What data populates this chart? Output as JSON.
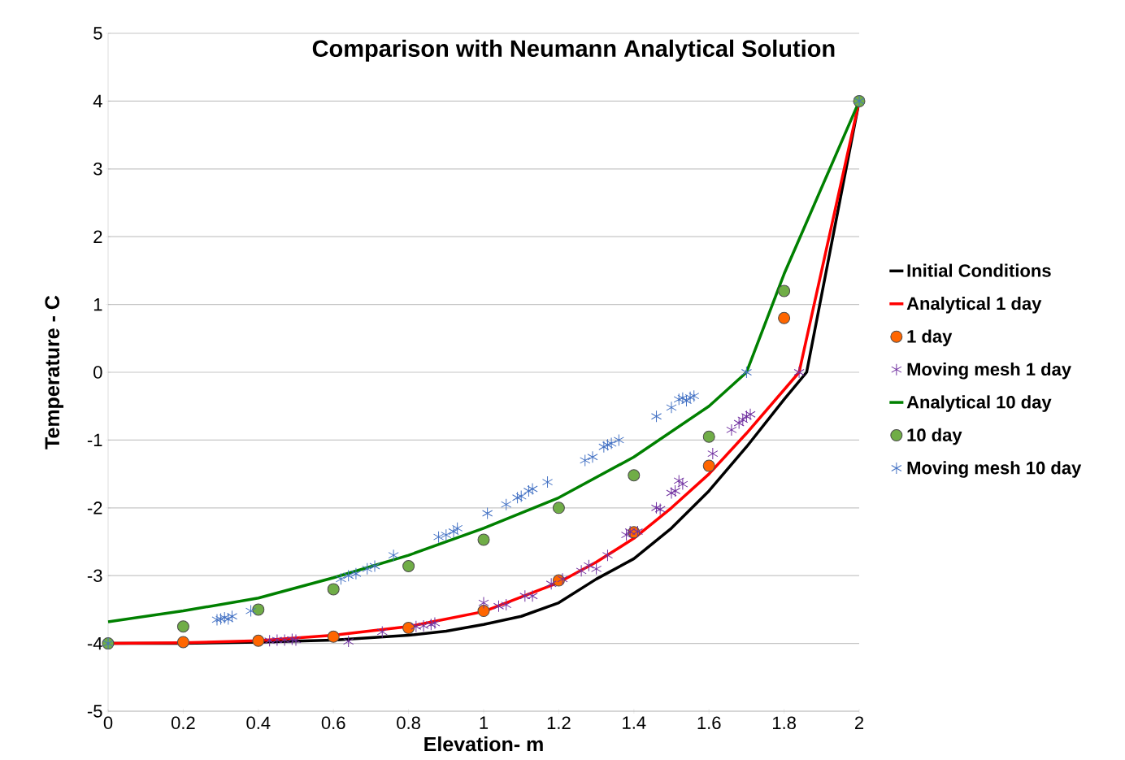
{
  "chart_data": {
    "type": "line",
    "title": "Comparison with Neumann Analytical Solution",
    "xlabel": "Elevation- m",
    "ylabel": "Temperature - C",
    "xlim": [
      0,
      2
    ],
    "xticks": [
      0,
      0.2,
      0.4,
      0.6,
      0.8,
      1,
      1.2,
      1.4,
      1.6,
      1.8,
      2
    ],
    "ylim": [
      -5,
      5
    ],
    "yticks": [
      -5,
      -4,
      -3,
      -2,
      -1,
      0,
      1,
      2,
      3,
      4,
      5
    ],
    "grid": "y",
    "legend": "right",
    "line_style": "solid",
    "series": [
      {
        "name": "Initial Conditions",
        "type": "line",
        "marker": "none",
        "color": "#000000",
        "x": [
          0,
          0.2,
          0.4,
          0.6,
          0.8,
          0.9,
          1.0,
          1.1,
          1.2,
          1.3,
          1.4,
          1.5,
          1.6,
          1.7,
          1.8,
          1.86,
          2
        ],
        "values": [
          -4,
          -4,
          -3.98,
          -3.95,
          -3.88,
          -3.82,
          -3.72,
          -3.6,
          -3.4,
          -3.05,
          -2.75,
          -2.3,
          -1.75,
          -1.1,
          -0.4,
          0,
          4
        ]
      },
      {
        "name": "Analytical 1 day",
        "type": "line",
        "marker": "none",
        "color": "#ff0000",
        "x": [
          0,
          0.2,
          0.4,
          0.6,
          0.8,
          1.0,
          1.2,
          1.3,
          1.4,
          1.5,
          1.6,
          1.7,
          1.84,
          2
        ],
        "values": [
          -4,
          -3.99,
          -3.96,
          -3.88,
          -3.75,
          -3.53,
          -3.1,
          -2.8,
          -2.45,
          -2.0,
          -1.5,
          -0.9,
          0,
          4
        ]
      },
      {
        "name": "1 day",
        "type": "scatter",
        "marker": "circle",
        "color": "#ff6600",
        "x": [
          0.2,
          0.4,
          0.6,
          0.8,
          1.0,
          1.2,
          1.4,
          1.6,
          1.8
        ],
        "values": [
          -3.98,
          -3.96,
          -3.9,
          -3.77,
          -3.52,
          -3.07,
          -2.36,
          -1.38,
          0.8
        ]
      },
      {
        "name": "Moving mesh 1 day",
        "type": "scatter",
        "marker": "cross",
        "color": "#7030a0",
        "x": [
          0.43,
          0.45,
          0.47,
          0.49,
          0.5,
          0.64,
          0.73,
          0.82,
          0.84,
          0.86,
          0.87,
          1.0,
          1.04,
          1.06,
          1.11,
          1.13,
          1.18,
          1.21,
          1.26,
          1.28,
          1.3,
          1.33,
          1.38,
          1.39,
          1.41,
          1.46,
          1.47,
          1.5,
          1.51,
          1.52,
          1.53,
          1.61,
          1.66,
          1.68,
          1.69,
          1.7,
          1.71,
          1.84
        ],
        "values": [
          -3.96,
          -3.95,
          -3.95,
          -3.94,
          -3.95,
          -3.97,
          -3.83,
          -3.75,
          -3.74,
          -3.72,
          -3.7,
          -3.4,
          -3.45,
          -3.43,
          -3.3,
          -3.3,
          -3.12,
          -3.05,
          -2.93,
          -2.85,
          -2.9,
          -2.7,
          -2.4,
          -2.35,
          -2.35,
          -2.0,
          -2.02,
          -1.78,
          -1.75,
          -1.6,
          -1.65,
          -1.2,
          -0.85,
          -0.75,
          -0.7,
          -0.65,
          -0.62,
          0
        ]
      },
      {
        "name": "Analytical 10 day",
        "type": "line",
        "marker": "none",
        "color": "#008000",
        "x": [
          0,
          0.2,
          0.4,
          0.6,
          0.8,
          1.0,
          1.2,
          1.4,
          1.6,
          1.7,
          1.8,
          2
        ],
        "values": [
          -3.68,
          -3.52,
          -3.33,
          -3.03,
          -2.7,
          -2.3,
          -1.85,
          -1.25,
          -0.5,
          0,
          1.45,
          4
        ]
      },
      {
        "name": "10 day",
        "type": "scatter",
        "marker": "circle",
        "color": "#70ad47",
        "x": [
          0,
          0.2,
          0.4,
          0.6,
          0.8,
          1.0,
          1.2,
          1.4,
          1.6,
          1.8,
          2
        ],
        "values": [
          -4,
          -3.75,
          -3.5,
          -3.2,
          -2.86,
          -2.47,
          -2.0,
          -1.52,
          -0.95,
          1.2,
          4
        ]
      },
      {
        "name": "Moving mesh 10 day",
        "type": "scatter",
        "marker": "cross",
        "color": "#4472c4",
        "x": [
          0,
          0.29,
          0.3,
          0.31,
          0.32,
          0.33,
          0.38,
          0.62,
          0.64,
          0.66,
          0.69,
          0.71,
          0.76,
          0.88,
          0.9,
          0.92,
          0.93,
          1.01,
          1.06,
          1.09,
          1.1,
          1.12,
          1.13,
          1.17,
          1.27,
          1.29,
          1.32,
          1.33,
          1.34,
          1.36,
          1.46,
          1.5,
          1.52,
          1.53,
          1.54,
          1.55,
          1.56,
          1.7,
          2
        ],
        "values": [
          -4,
          -3.65,
          -3.64,
          -3.62,
          -3.64,
          -3.6,
          -3.52,
          -3.05,
          -3.0,
          -2.97,
          -2.9,
          -2.86,
          -2.7,
          -2.43,
          -2.4,
          -2.35,
          -2.3,
          -2.08,
          -1.95,
          -1.85,
          -1.83,
          -1.75,
          -1.72,
          -1.62,
          -1.3,
          -1.25,
          -1.1,
          -1.07,
          -1.05,
          -1.0,
          -0.65,
          -0.52,
          -0.4,
          -0.38,
          -0.42,
          -0.37,
          -0.35,
          0,
          4
        ]
      }
    ]
  }
}
